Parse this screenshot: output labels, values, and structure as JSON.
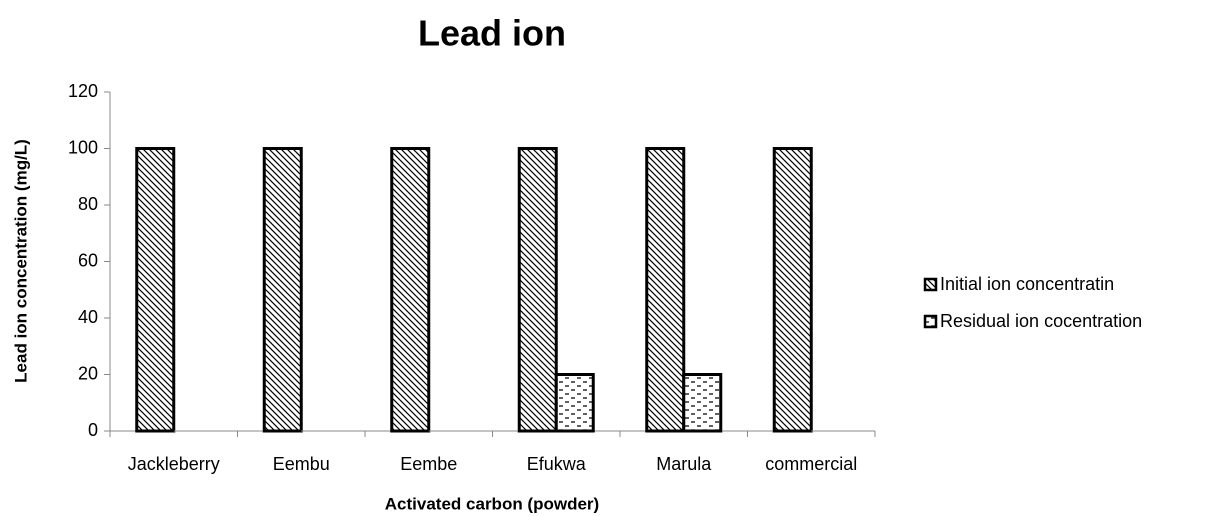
{
  "chart_data": {
    "type": "bar",
    "title": "Lead ion",
    "x_label": "Activated carbon (powder)",
    "y_label": "Lead ion concentration (mg/L)",
    "categories": [
      "Jackleberry",
      "Eembu",
      "Eembe",
      "Efukwa",
      "Marula",
      "commercial"
    ],
    "series": [
      {
        "name": "Initial ion concentratin",
        "color": "#000000",
        "pattern": "diagonal",
        "values": [
          100,
          100,
          100,
          100,
          100,
          100
        ]
      },
      {
        "name": "Residual ion cocentration",
        "color": "#000000",
        "pattern": "dashes",
        "values": [
          0,
          0,
          0,
          20,
          20,
          0
        ]
      }
    ],
    "ylim": [
      0,
      120
    ],
    "yticks": [
      0,
      20,
      40,
      60,
      80,
      100,
      120
    ],
    "grid": false,
    "legend": "right"
  }
}
